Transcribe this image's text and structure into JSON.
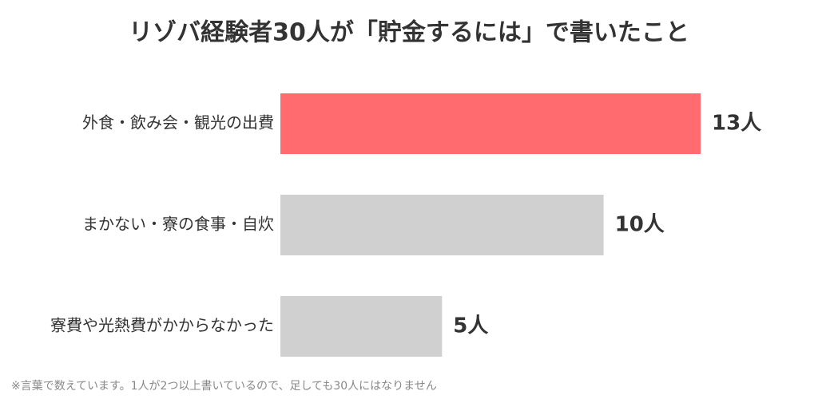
{
  "chart_data": {
    "type": "bar",
    "orientation": "horizontal",
    "title": "リゾバ経験者30人が「貯金するには」で書いたこと",
    "categories": [
      "外食・飲み会・観光の出費",
      "まかない・寮の食事・自炊",
      "寮費や光熱費がかからなかった"
    ],
    "values": [
      13,
      10,
      5
    ],
    "value_labels": [
      "13人",
      "10人",
      "5人"
    ],
    "colors": [
      "#ff6b6e",
      "#d0d0d0",
      "#d0d0d0"
    ],
    "note": "※言葉で数えています。1人が2つ以上書いているので、足しても30人にはなりません"
  }
}
